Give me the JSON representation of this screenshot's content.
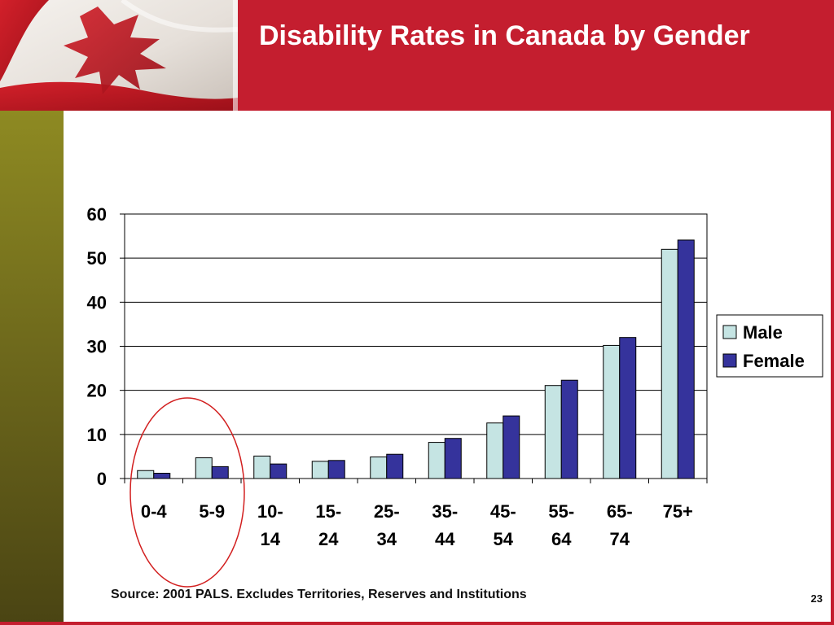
{
  "slide": {
    "title": "Disability Rates in Canada by Gender",
    "source": "Source: 2001 PALS.  Excludes Territories, Reserves and Institutions",
    "page_number": "23",
    "colors": {
      "header": "#c41e2f",
      "sidebar": "#7d781f",
      "male": "#c5e4e3",
      "female": "#35339c",
      "highlight_circle": "#d21f1f"
    }
  },
  "chart_data": {
    "type": "bar",
    "categories": [
      "0-4",
      "5-9",
      "10-14",
      "15-24",
      "25-34",
      "35-44",
      "45-54",
      "55-64",
      "65-74",
      "75+"
    ],
    "category_label_lines": [
      [
        "0-4"
      ],
      [
        "5-9"
      ],
      [
        "10-",
        "14"
      ],
      [
        "15-",
        "24"
      ],
      [
        "25-",
        "34"
      ],
      [
        "35-",
        "44"
      ],
      [
        "45-",
        "54"
      ],
      [
        "55-",
        "64"
      ],
      [
        "65-",
        "74"
      ],
      [
        "75+"
      ]
    ],
    "series": [
      {
        "name": "Male",
        "values": [
          1.8,
          4.7,
          5.1,
          3.9,
          4.9,
          8.2,
          12.6,
          21.1,
          30.2,
          52.0
        ]
      },
      {
        "name": "Female",
        "values": [
          1.2,
          2.7,
          3.3,
          4.1,
          5.5,
          9.1,
          14.2,
          22.3,
          32.0,
          54.1
        ]
      }
    ],
    "ylim": [
      0,
      60
    ],
    "yticks": [
      "0",
      "10",
      "20",
      "30",
      "40",
      "50",
      "60"
    ],
    "grid": true,
    "legend_position": "right",
    "annotation": "red ellipse highlighting 0-4 and 5-9 groups"
  }
}
